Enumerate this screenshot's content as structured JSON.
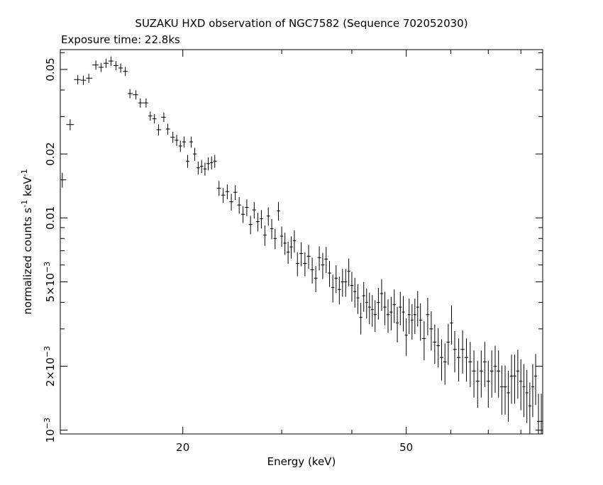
{
  "chart_data": {
    "type": "scatter",
    "title": "SUZAKU HXD observation of NGC7582 (Sequence 702052030)",
    "subtitle": "Exposure time: 22.8ks",
    "xlabel": "Energy (keV)",
    "ylabel": {
      "base": "normalized counts s",
      "exp1": "-1",
      "mid": " keV",
      "exp2": "-1"
    },
    "xscale": "log",
    "yscale": "log",
    "xlim": [
      12.1,
      87.5
    ],
    "ylim": [
      0.00096,
      0.062
    ],
    "grid": false,
    "x_ticks": [
      {
        "value": 20,
        "label": "20"
      },
      {
        "value": 50,
        "label": "50"
      }
    ],
    "y_ticks": [
      {
        "value": 0.05,
        "mant": "0.05",
        "exp": ""
      },
      {
        "value": 0.02,
        "mant": "0.02",
        "exp": ""
      },
      {
        "value": 0.01,
        "mant": "0.01",
        "exp": ""
      },
      {
        "value": 0.005,
        "mant": "5×10",
        "exp": "−3"
      },
      {
        "value": 0.002,
        "mant": "2×10",
        "exp": "−3"
      },
      {
        "value": 0.001,
        "mant": "10",
        "exp": "−3"
      }
    ],
    "series": [
      {
        "x": [
          12.2,
          12.6,
          13.0,
          13.3,
          13.6,
          14.0,
          14.3,
          14.6,
          14.9,
          15.2,
          15.5,
          15.8,
          16.1,
          16.5,
          16.8,
          17.2,
          17.5,
          17.8,
          18.1,
          18.5,
          18.8,
          19.2,
          19.5,
          19.8,
          20.1,
          20.4,
          20.7,
          21.0,
          21.3,
          21.6,
          21.9,
          22.2,
          22.5,
          22.8,
          23.2,
          23.6,
          24.0,
          24.4,
          24.8,
          25.2,
          25.6,
          26.0,
          26.4,
          26.8,
          27.2,
          27.6,
          28.0,
          28.4,
          28.8,
          29.2,
          29.6,
          30.0,
          30.4,
          30.8,
          31.2,
          31.6,
          32.0,
          32.5,
          33.0,
          33.5,
          34.0,
          34.5,
          35.0,
          35.5,
          36.0,
          36.5,
          37.0,
          37.5,
          38.0,
          38.5,
          39.0,
          39.5,
          40.0,
          40.5,
          41.0,
          41.5,
          42.0,
          42.5,
          43.0,
          43.5,
          44.0,
          44.6,
          45.2,
          45.8,
          46.4,
          47.0,
          47.6,
          48.2,
          48.8,
          49.4,
          50.0,
          50.6,
          51.2,
          51.8,
          52.4,
          53.0,
          53.8,
          54.6,
          55.4,
          56.2,
          57.0,
          57.8,
          58.6,
          59.4,
          60.2,
          61.0,
          62.0,
          63.0,
          64.0,
          65.0,
          66.0,
          67.0,
          68.0,
          69.0,
          70.0,
          71.0,
          72.0,
          73.0,
          74.0,
          75.0,
          76.0,
          77.0,
          78.0,
          79.0,
          80.0,
          81.0,
          82.0,
          83.0,
          84.0,
          85.0,
          86.0,
          87.0
        ],
        "y": [
          0.0151,
          0.0275,
          0.0448,
          0.0445,
          0.0455,
          0.0525,
          0.0512,
          0.0535,
          0.0548,
          0.0522,
          0.0508,
          0.049,
          0.0385,
          0.038,
          0.0348,
          0.0348,
          0.0302,
          0.0293,
          0.026,
          0.0298,
          0.0262,
          0.024,
          0.0232,
          0.0218,
          0.0228,
          0.0185,
          0.0228,
          0.02,
          0.0172,
          0.0175,
          0.017,
          0.018,
          0.0182,
          0.0185,
          0.0138,
          0.0128,
          0.0133,
          0.0119,
          0.0132,
          0.0115,
          0.0104,
          0.0112,
          0.0093,
          0.0109,
          0.0096,
          0.0099,
          0.0083,
          0.0102,
          0.0089,
          0.008,
          0.0108,
          0.0082,
          0.0076,
          0.0069,
          0.0073,
          0.0078,
          0.0061,
          0.0068,
          0.0061,
          0.0066,
          0.0057,
          0.0052,
          0.0065,
          0.006,
          0.0064,
          0.0055,
          0.0047,
          0.0052,
          0.0046,
          0.005,
          0.005,
          0.0056,
          0.0048,
          0.0045,
          0.0042,
          0.0034,
          0.0043,
          0.004,
          0.0038,
          0.0037,
          0.0035,
          0.004,
          0.0044,
          0.0038,
          0.0035,
          0.0036,
          0.0039,
          0.0032,
          0.0038,
          0.0036,
          0.0028,
          0.0035,
          0.0033,
          0.0035,
          0.0038,
          0.0033,
          0.0027,
          0.0035,
          0.003,
          0.0026,
          0.0025,
          0.0022,
          0.0021,
          0.0026,
          0.0032,
          0.0024,
          0.0022,
          0.0024,
          0.0022,
          0.0021,
          0.0019,
          0.0017,
          0.0019,
          0.0021,
          0.0017,
          0.0019,
          0.002,
          0.0019,
          0.0016,
          0.0016,
          0.0015,
          0.0018,
          0.0018,
          0.0019,
          0.0017,
          0.0016,
          0.0015,
          0.0013,
          0.0016,
          0.0018,
          0.0011,
          0.0011
        ],
        "yerr": [
          0.08,
          0.06,
          0.05,
          0.05,
          0.05,
          0.05,
          0.05,
          0.05,
          0.05,
          0.05,
          0.05,
          0.05,
          0.05,
          0.05,
          0.05,
          0.05,
          0.05,
          0.05,
          0.06,
          0.05,
          0.06,
          0.06,
          0.06,
          0.06,
          0.06,
          0.07,
          0.06,
          0.07,
          0.07,
          0.07,
          0.07,
          0.07,
          0.07,
          0.07,
          0.08,
          0.08,
          0.08,
          0.09,
          0.08,
          0.09,
          0.09,
          0.09,
          0.1,
          0.09,
          0.1,
          0.1,
          0.11,
          0.1,
          0.11,
          0.11,
          0.1,
          0.11,
          0.12,
          0.12,
          0.12,
          0.12,
          0.13,
          0.13,
          0.13,
          0.13,
          0.14,
          0.14,
          0.13,
          0.14,
          0.14,
          0.14,
          0.15,
          0.15,
          0.15,
          0.15,
          0.15,
          0.15,
          0.16,
          0.16,
          0.16,
          0.17,
          0.16,
          0.16,
          0.17,
          0.17,
          0.17,
          0.17,
          0.17,
          0.18,
          0.18,
          0.18,
          0.18,
          0.19,
          0.18,
          0.19,
          0.2,
          0.19,
          0.19,
          0.19,
          0.19,
          0.2,
          0.21,
          0.2,
          0.21,
          0.21,
          0.21,
          0.22,
          0.22,
          0.22,
          0.21,
          0.22,
          0.23,
          0.23,
          0.23,
          0.24,
          0.25,
          0.25,
          0.25,
          0.24,
          0.25,
          0.25,
          0.25,
          0.25,
          0.26,
          0.26,
          0.27,
          0.26,
          0.26,
          0.26,
          0.27,
          0.28,
          0.28,
          0.29,
          0.28,
          0.27,
          0.35,
          0.35
        ]
      }
    ]
  }
}
